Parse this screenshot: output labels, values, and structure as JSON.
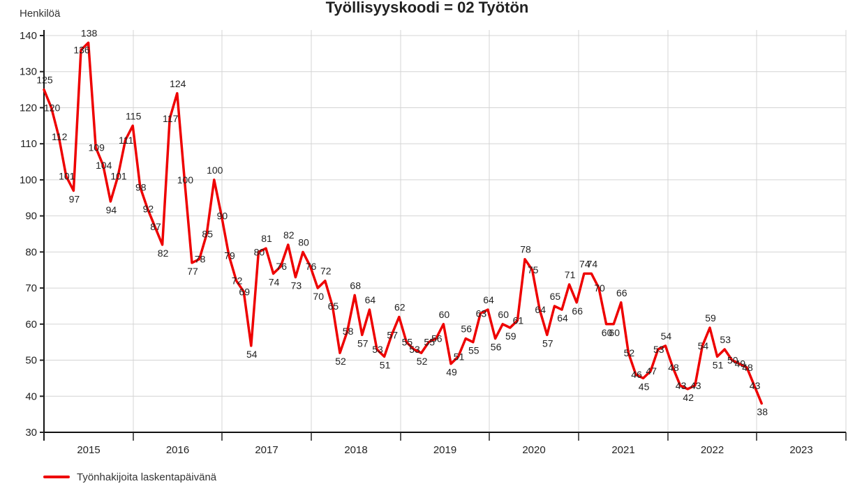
{
  "chart_data": {
    "type": "line",
    "title": "Työllisyyskoodi = 02 Työtön",
    "ylabel": "Henkilöä",
    "ylim": [
      30,
      140
    ],
    "yticks": [
      30,
      40,
      50,
      60,
      70,
      80,
      90,
      100,
      110,
      120,
      130,
      140
    ],
    "xlabels": [
      "2015",
      "2016",
      "2017",
      "2018",
      "2019",
      "2020",
      "2021",
      "2022",
      "2023"
    ],
    "grid": true,
    "legend_position": "bottom-left",
    "series": [
      {
        "name": "Työnhakijoita laskentapäivänä",
        "color": "#ee0000",
        "values": [
          125,
          120,
          112,
          101,
          97,
          136,
          138,
          109,
          104,
          94,
          101,
          111,
          115,
          98,
          92,
          87,
          82,
          117,
          124,
          100,
          77,
          78,
          85,
          100,
          90,
          79,
          72,
          69,
          54,
          80,
          81,
          74,
          76,
          82,
          73,
          80,
          76,
          70,
          72,
          65,
          52,
          58,
          68,
          57,
          64,
          53,
          51,
          57,
          62,
          55,
          53,
          52,
          55,
          56,
          60,
          49,
          51,
          56,
          55,
          63,
          64,
          56,
          60,
          59,
          61,
          78,
          75,
          64,
          57,
          65,
          64,
          71,
          66,
          74,
          74,
          70,
          60,
          60,
          66,
          52,
          46,
          45,
          47,
          53,
          54,
          48,
          43,
          42,
          43,
          54,
          59,
          51,
          53,
          50,
          49,
          48,
          43,
          38
        ]
      }
    ]
  }
}
